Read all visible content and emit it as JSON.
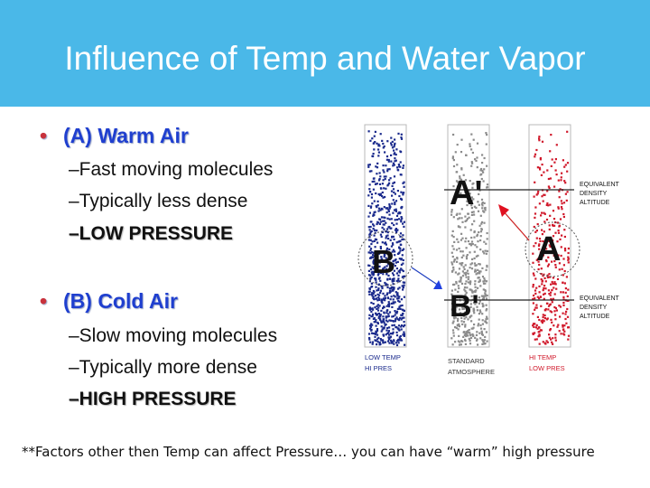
{
  "title": "Influence of Temp and Water Vapor",
  "bullets": [
    {
      "label": "(A) Warm Air",
      "items": [
        "–Fast moving molecules",
        "–Typically less dense",
        "–LOW PRESSURE"
      ]
    },
    {
      "label": "(B) Cold Air",
      "items": [
        "–Slow moving molecules",
        "–Typically more dense",
        "–HIGH PRESSURE"
      ]
    }
  ],
  "footnote": "**Factors other then Temp can affect Pressure… you can have “warm” high pressure",
  "diagram": {
    "letters": {
      "a_prime": "A'",
      "a": "A",
      "b": "B",
      "b_prime": "B'"
    },
    "right_labels": {
      "upper": [
        "EQUIVALENT",
        "DENSITY",
        "ALTITUDE"
      ],
      "lower": [
        "EQUIVALENT",
        "DENSITY",
        "ALTITUDE"
      ]
    },
    "column_captions": {
      "cold": [
        "LOW TEMP",
        "HI PRES"
      ],
      "standard": [
        "STANDARD",
        "ATMOSPHERE"
      ],
      "warm": [
        "HI TEMP",
        "LOW PRES"
      ]
    },
    "colors": {
      "cold": "#1a2a8c",
      "standard": "#8c8c8c",
      "warm": "#d0182a",
      "arrow_cold": "#2040e0",
      "arrow_warm": "#e01020"
    }
  }
}
